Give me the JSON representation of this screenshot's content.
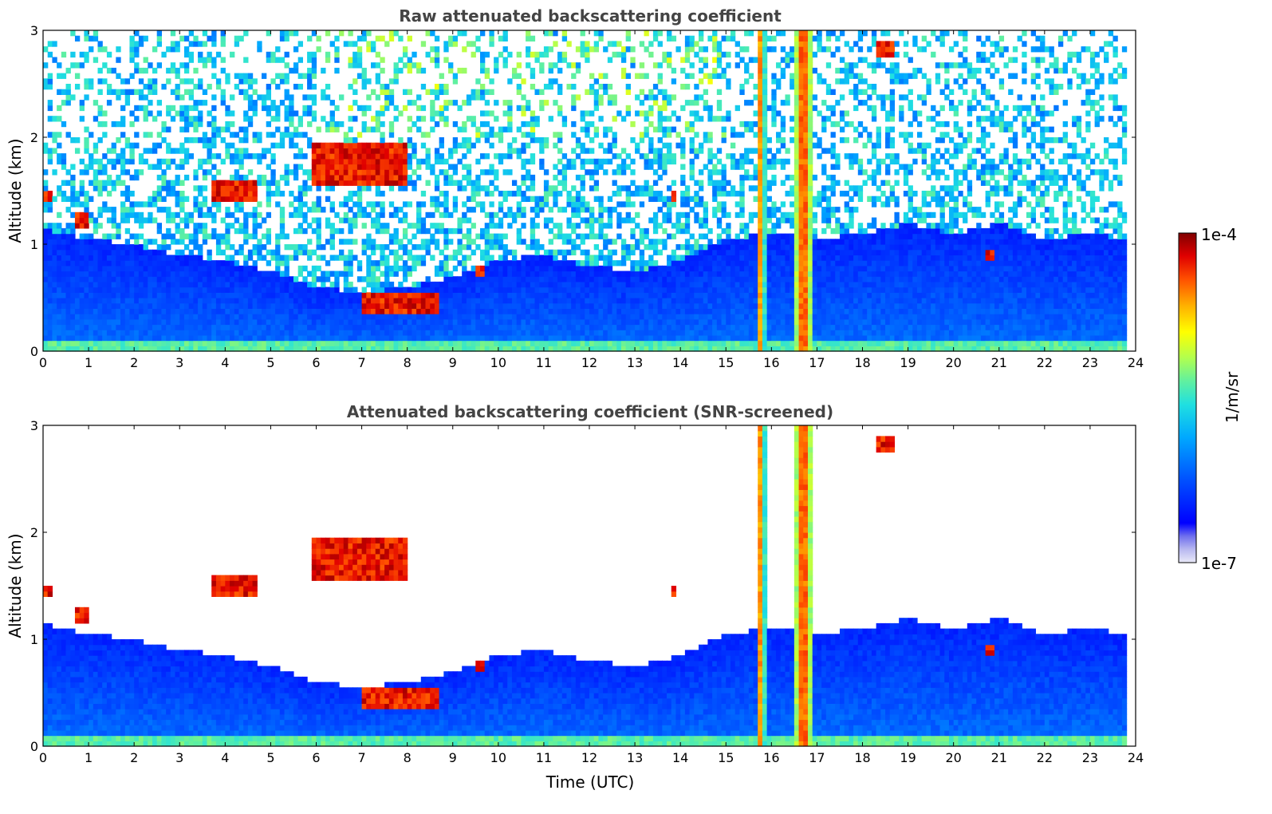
{
  "chart_data": [
    {
      "type": "heatmap",
      "title": "Raw attenuated backscattering coefficient",
      "xlabel": "",
      "ylabel": "Altitude (km)",
      "xlim": [
        0,
        24
      ],
      "ylim": [
        0,
        3
      ],
      "xticks": [
        0,
        1,
        2,
        3,
        4,
        5,
        6,
        7,
        8,
        9,
        10,
        11,
        12,
        13,
        14,
        15,
        16,
        17,
        18,
        19,
        20,
        21,
        22,
        23,
        24
      ],
      "yticks": [
        0,
        1,
        2,
        3
      ],
      "data_extent_x": [
        0,
        23.8
      ],
      "screened": false,
      "features": [
        {
          "kind": "cloud",
          "x": [
            0.0,
            0.15
          ],
          "y": [
            1.38,
            1.48
          ]
        },
        {
          "kind": "cloud",
          "x": [
            0.7,
            1.0
          ],
          "y": [
            1.15,
            1.3
          ]
        },
        {
          "kind": "cloud",
          "x": [
            3.7,
            4.7
          ],
          "y": [
            1.38,
            1.62
          ]
        },
        {
          "kind": "cloud",
          "x": [
            5.9,
            8.0
          ],
          "y": [
            1.55,
            1.95
          ]
        },
        {
          "kind": "cloud",
          "x": [
            7.0,
            8.7
          ],
          "y": [
            0.35,
            0.55
          ]
        },
        {
          "kind": "cloud",
          "x": [
            9.5,
            9.7
          ],
          "y": [
            0.72,
            0.8
          ]
        },
        {
          "kind": "cloud",
          "x": [
            13.8,
            13.95
          ],
          "y": [
            1.38,
            1.5
          ]
        },
        {
          "kind": "precip",
          "x": [
            15.7,
            15.85
          ],
          "y": [
            0,
            3
          ]
        },
        {
          "kind": "precip",
          "x": [
            16.5,
            16.9
          ],
          "y": [
            0,
            3
          ]
        },
        {
          "kind": "cloud",
          "x": [
            18.3,
            18.7
          ],
          "y": [
            2.75,
            2.88
          ]
        },
        {
          "kind": "cloud",
          "x": [
            20.7,
            20.9
          ],
          "y": [
            0.85,
            0.95
          ]
        }
      ]
    },
    {
      "type": "heatmap",
      "title": "Attenuated backscattering coefficient (SNR-screened)",
      "xlabel": "Time (UTC)",
      "ylabel": "Altitude (km)",
      "xlim": [
        0,
        24
      ],
      "ylim": [
        0,
        3
      ],
      "xticks": [
        0,
        1,
        2,
        3,
        4,
        5,
        6,
        7,
        8,
        9,
        10,
        11,
        12,
        13,
        14,
        15,
        16,
        17,
        18,
        19,
        20,
        21,
        22,
        23,
        24
      ],
      "yticks": [
        0,
        1,
        2,
        3
      ],
      "data_extent_x": [
        0,
        23.8
      ],
      "screened": true,
      "boundary_layer_top_km": [
        [
          0,
          1.15
        ],
        [
          1,
          1.05
        ],
        [
          2,
          1.0
        ],
        [
          3,
          0.9
        ],
        [
          4,
          0.85
        ],
        [
          5,
          0.75
        ],
        [
          6,
          0.6
        ],
        [
          7,
          0.55
        ],
        [
          8,
          0.6
        ],
        [
          9,
          0.7
        ],
        [
          10,
          0.85
        ],
        [
          11,
          0.9
        ],
        [
          12,
          0.8
        ],
        [
          13,
          0.75
        ],
        [
          14,
          0.85
        ],
        [
          15,
          1.05
        ],
        [
          16,
          1.1
        ],
        [
          17,
          1.05
        ],
        [
          18,
          1.1
        ],
        [
          19,
          1.2
        ],
        [
          20,
          1.1
        ],
        [
          21,
          1.2
        ],
        [
          22,
          1.05
        ],
        [
          23,
          1.1
        ],
        [
          23.8,
          1.05
        ]
      ]
    }
  ],
  "colorbar": {
    "label": "1/m/sr",
    "max_label": "1e-4",
    "min_label": "1e-7",
    "range": [
      1e-07,
      0.0001
    ],
    "scale": "log",
    "colormap": [
      "#eaeaf8",
      "#c8c8f0",
      "#9090ee",
      "#0000ff",
      "#0050ff",
      "#00a0ff",
      "#20d0ff",
      "#40e8c0",
      "#80ff80",
      "#d0ff40",
      "#ffff00",
      "#ffc000",
      "#ff8000",
      "#ff3000",
      "#d00000",
      "#800000"
    ]
  }
}
